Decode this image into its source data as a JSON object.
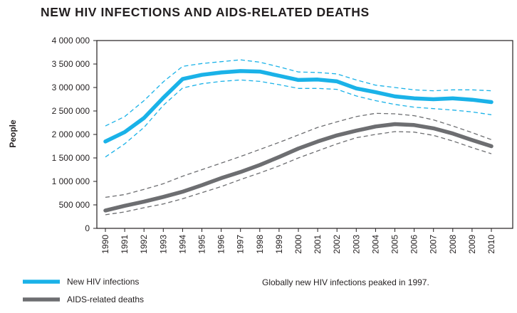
{
  "title": "NEW HIV INFECTIONS AND AIDS-RELATED DEATHS",
  "chart_data": {
    "type": "line",
    "title": "NEW HIV INFECTIONS AND AIDS-RELATED DEATHS",
    "xlabel": "",
    "ylabel": "People",
    "ylim": [
      0,
      4000000
    ],
    "yticks": [
      0,
      500000,
      1000000,
      1500000,
      2000000,
      2500000,
      3000000,
      3500000,
      4000000
    ],
    "ytick_labels": [
      "0",
      "500 000",
      "1 000 000",
      "1 500 000",
      "2 000 000",
      "2 500 000",
      "3 000 000",
      "3 500 000",
      "4 000 000"
    ],
    "x": [
      "1990",
      "1991",
      "1992",
      "1993",
      "1994",
      "1995",
      "1996",
      "1997",
      "1998",
      "1999",
      "2000",
      "2001",
      "2002",
      "2003",
      "2004",
      "2005",
      "2006",
      "2007",
      "2008",
      "2009",
      "2010"
    ],
    "grid": false,
    "legend_position": "bottom-left",
    "series": [
      {
        "name": "New HIV infections",
        "color": "#1ab2e8",
        "values": [
          1850000,
          2050000,
          2350000,
          2780000,
          3180000,
          3270000,
          3320000,
          3350000,
          3340000,
          3250000,
          3160000,
          3170000,
          3130000,
          2980000,
          2900000,
          2810000,
          2770000,
          2750000,
          2770000,
          2740000,
          2690000
        ],
        "lower": [
          1520000,
          1800000,
          2150000,
          2620000,
          2990000,
          3080000,
          3130000,
          3160000,
          3130000,
          3060000,
          2980000,
          2980000,
          2960000,
          2820000,
          2720000,
          2640000,
          2580000,
          2550000,
          2520000,
          2480000,
          2420000
        ],
        "upper": [
          2180000,
          2380000,
          2720000,
          3120000,
          3450000,
          3510000,
          3550000,
          3590000,
          3540000,
          3440000,
          3330000,
          3320000,
          3290000,
          3160000,
          3050000,
          3000000,
          2950000,
          2930000,
          2950000,
          2950000,
          2930000
        ]
      },
      {
        "name": "AIDS-related deaths",
        "color": "#6d6e71",
        "values": [
          380000,
          480000,
          570000,
          670000,
          780000,
          920000,
          1070000,
          1200000,
          1350000,
          1520000,
          1700000,
          1850000,
          1980000,
          2080000,
          2170000,
          2220000,
          2200000,
          2130000,
          2020000,
          1880000,
          1750000
        ],
        "lower": [
          290000,
          350000,
          440000,
          520000,
          630000,
          760000,
          890000,
          1040000,
          1180000,
          1330000,
          1500000,
          1650000,
          1800000,
          1930000,
          2000000,
          2060000,
          2050000,
          1980000,
          1860000,
          1720000,
          1590000
        ],
        "upper": [
          660000,
          720000,
          830000,
          950000,
          1110000,
          1250000,
          1390000,
          1530000,
          1680000,
          1830000,
          1990000,
          2150000,
          2270000,
          2380000,
          2450000,
          2440000,
          2400000,
          2310000,
          2180000,
          2040000,
          1890000
        ]
      }
    ],
    "annotation": "Globally new HIV infections peaked in 1997."
  }
}
